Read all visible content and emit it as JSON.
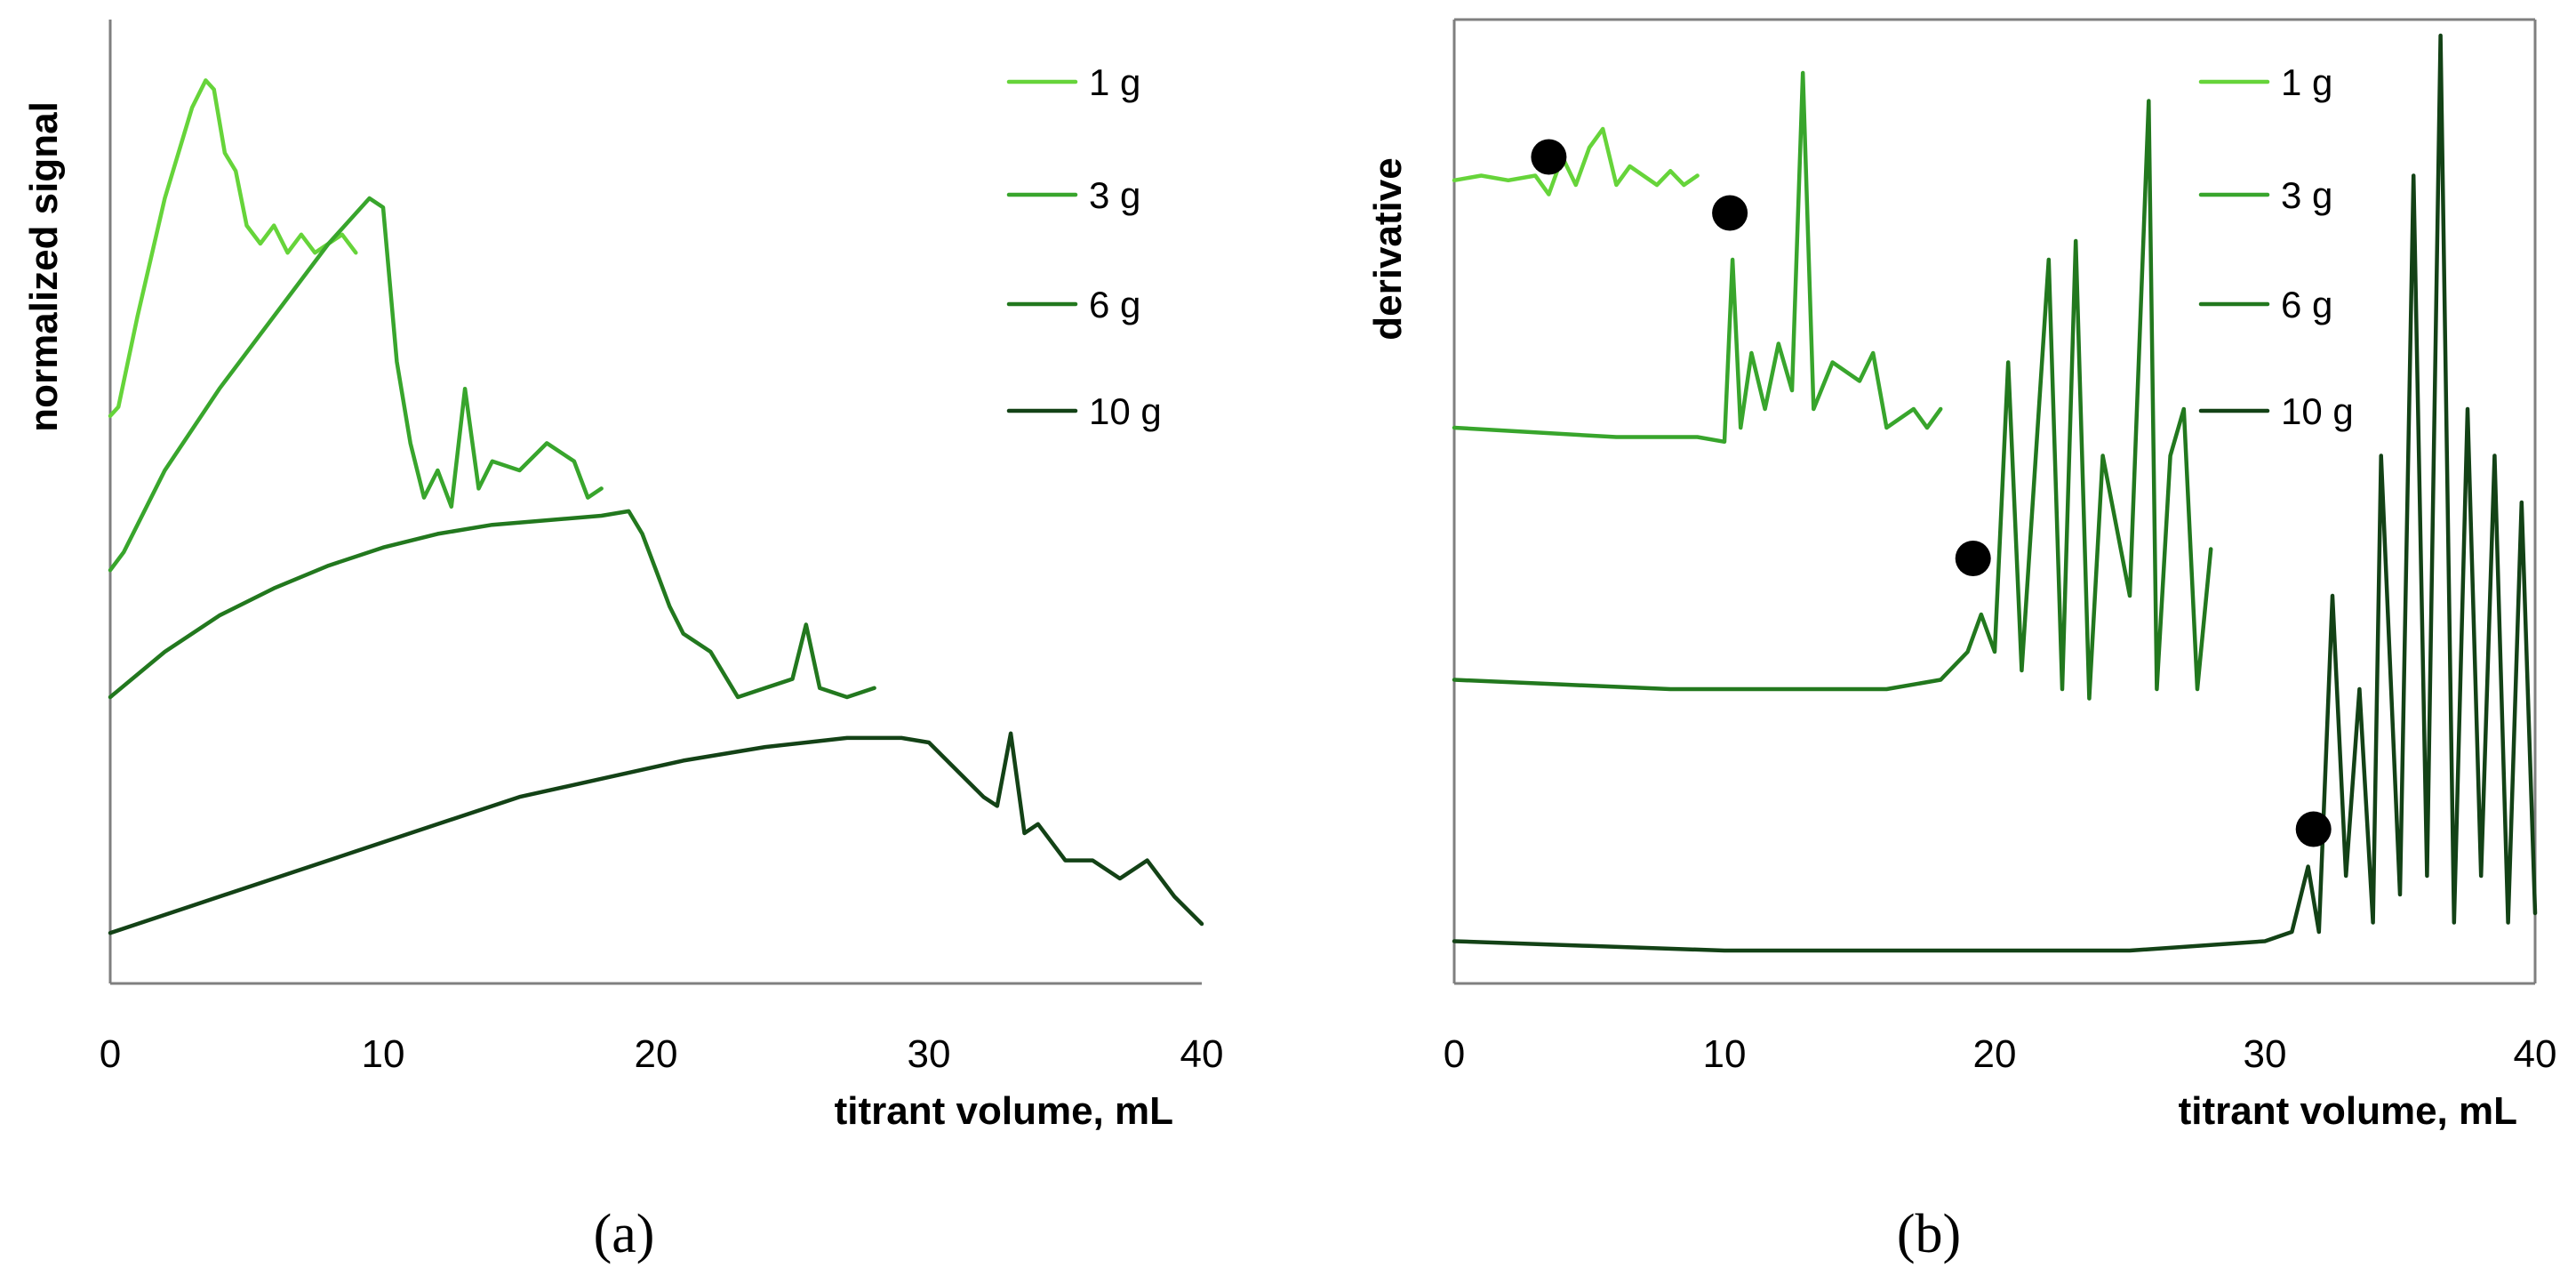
{
  "colors": {
    "1 g": "#66d43a",
    "3 g": "#38a52c",
    "6 g": "#22781e",
    "10 g": "#134216",
    "marker": "#000000",
    "axis": "#7f7f7f"
  },
  "chart_data": [
    {
      "panel_label": "(a)",
      "type": "line",
      "title": "",
      "xlabel": "titrant volume, mL",
      "ylabel": "normalized signal",
      "xlim": [
        0,
        40
      ],
      "ylim": [
        0,
        1
      ],
      "xticks": [
        "0",
        "10",
        "20",
        "30",
        "40"
      ],
      "legend": [
        "1 g",
        "3 g",
        "6 g",
        "10 g"
      ],
      "legend_position": "top-right",
      "series": [
        {
          "name": "1 g",
          "x": [
            0,
            0.3,
            1,
            2,
            3,
            3.5,
            3.8,
            4.2,
            4.6,
            5,
            5.5,
            6,
            6.5,
            7,
            7.5,
            8,
            8.5,
            9
          ],
          "y": [
            0.61,
            0.62,
            0.72,
            0.85,
            0.95,
            0.98,
            0.97,
            0.9,
            0.88,
            0.82,
            0.8,
            0.82,
            0.79,
            0.81,
            0.79,
            0.8,
            0.81,
            0.79
          ]
        },
        {
          "name": "3 g",
          "x": [
            0,
            0.5,
            2,
            4,
            6,
            8,
            9.5,
            10,
            10.5,
            11,
            11.5,
            12,
            12.5,
            13,
            13.5,
            14,
            15,
            16,
            17,
            17.5,
            18
          ],
          "y": [
            0.44,
            0.46,
            0.55,
            0.64,
            0.72,
            0.8,
            0.85,
            0.84,
            0.67,
            0.58,
            0.52,
            0.55,
            0.51,
            0.64,
            0.53,
            0.56,
            0.55,
            0.58,
            0.56,
            0.52,
            0.53
          ]
        },
        {
          "name": "6 g",
          "x": [
            0,
            2,
            4,
            6,
            8,
            10,
            12,
            14,
            16,
            18,
            19,
            19.5,
            20,
            20.5,
            21,
            22,
            23,
            24,
            25,
            25.5,
            26,
            27,
            28
          ],
          "y": [
            0.3,
            0.35,
            0.39,
            0.42,
            0.445,
            0.465,
            0.48,
            0.49,
            0.495,
            0.5,
            0.505,
            0.48,
            0.44,
            0.4,
            0.37,
            0.35,
            0.3,
            0.31,
            0.32,
            0.38,
            0.31,
            0.3,
            0.31
          ]
        },
        {
          "name": "10 g",
          "x": [
            0,
            3,
            6,
            9,
            12,
            15,
            18,
            21,
            24,
            27,
            29,
            30,
            31,
            32,
            32.5,
            33,
            33.5,
            34,
            35,
            36,
            37,
            38,
            39,
            40
          ],
          "y": [
            0.04,
            0.07,
            0.1,
            0.13,
            0.16,
            0.19,
            0.21,
            0.23,
            0.245,
            0.255,
            0.255,
            0.25,
            0.22,
            0.19,
            0.18,
            0.26,
            0.15,
            0.16,
            0.12,
            0.12,
            0.1,
            0.12,
            0.08,
            0.05
          ]
        }
      ]
    },
    {
      "panel_label": "(b)",
      "type": "line",
      "title": "",
      "xlabel": "titrant volume, mL",
      "ylabel": "derivative",
      "xlim": [
        0,
        40
      ],
      "ylim": [
        0,
        1
      ],
      "xticks": [
        "0",
        "10",
        "20",
        "30",
        "40"
      ],
      "legend": [
        "1 g",
        "3 g",
        "6 g",
        "10 g"
      ],
      "legend_position": "top-right",
      "series": [
        {
          "name": "1 g",
          "x": [
            0,
            1,
            2,
            3,
            3.5,
            4,
            4.5,
            5,
            5.5,
            6,
            6.5,
            7,
            7.5,
            8,
            8.5,
            9
          ],
          "y": [
            0.845,
            0.85,
            0.845,
            0.85,
            0.83,
            0.87,
            0.84,
            0.88,
            0.9,
            0.84,
            0.86,
            0.85,
            0.84,
            0.855,
            0.84,
            0.85
          ]
        },
        {
          "name": "3 g",
          "x": [
            0,
            3,
            6,
            9,
            10,
            10.3,
            10.6,
            11,
            11.5,
            12,
            12.5,
            12.9,
            13.3,
            14,
            15,
            15.5,
            16,
            17,
            17.5,
            18
          ],
          "y": [
            0.58,
            0.575,
            0.57,
            0.57,
            0.565,
            0.76,
            0.58,
            0.66,
            0.6,
            0.67,
            0.62,
            0.96,
            0.6,
            0.65,
            0.63,
            0.66,
            0.58,
            0.6,
            0.58,
            0.6
          ]
        },
        {
          "name": "6 g",
          "x": [
            0,
            4,
            8,
            12,
            16,
            18,
            19,
            19.5,
            20,
            20.5,
            21,
            22,
            22.5,
            23,
            23.5,
            24,
            25,
            25.7,
            26,
            26.5,
            27,
            27.5,
            28
          ],
          "y": [
            0.31,
            0.305,
            0.3,
            0.3,
            0.3,
            0.31,
            0.34,
            0.38,
            0.34,
            0.65,
            0.32,
            0.76,
            0.3,
            0.78,
            0.29,
            0.55,
            0.4,
            0.93,
            0.3,
            0.55,
            0.6,
            0.3,
            0.45
          ]
        },
        {
          "name": "10 g",
          "x": [
            0,
            5,
            10,
            15,
            20,
            25,
            30,
            31,
            31.6,
            32,
            32.5,
            33,
            33.5,
            34,
            34.3,
            35,
            35.5,
            36,
            36.5,
            37,
            37.5,
            38,
            38.5,
            39,
            39.5,
            40
          ],
          "y": [
            0.03,
            0.025,
            0.02,
            0.02,
            0.02,
            0.02,
            0.03,
            0.04,
            0.11,
            0.04,
            0.4,
            0.1,
            0.3,
            0.05,
            0.55,
            0.08,
            0.85,
            0.1,
            1.0,
            0.05,
            0.6,
            0.1,
            0.55,
            0.05,
            0.5,
            0.06
          ]
        }
      ],
      "markers": [
        {
          "series": "1 g",
          "x": 3.5,
          "y": 0.87
        },
        {
          "series": "3 g",
          "x": 10.2,
          "y": 0.81
        },
        {
          "series": "6 g",
          "x": 19.2,
          "y": 0.44
        },
        {
          "series": "10 g",
          "x": 31.8,
          "y": 0.15
        }
      ]
    }
  ]
}
